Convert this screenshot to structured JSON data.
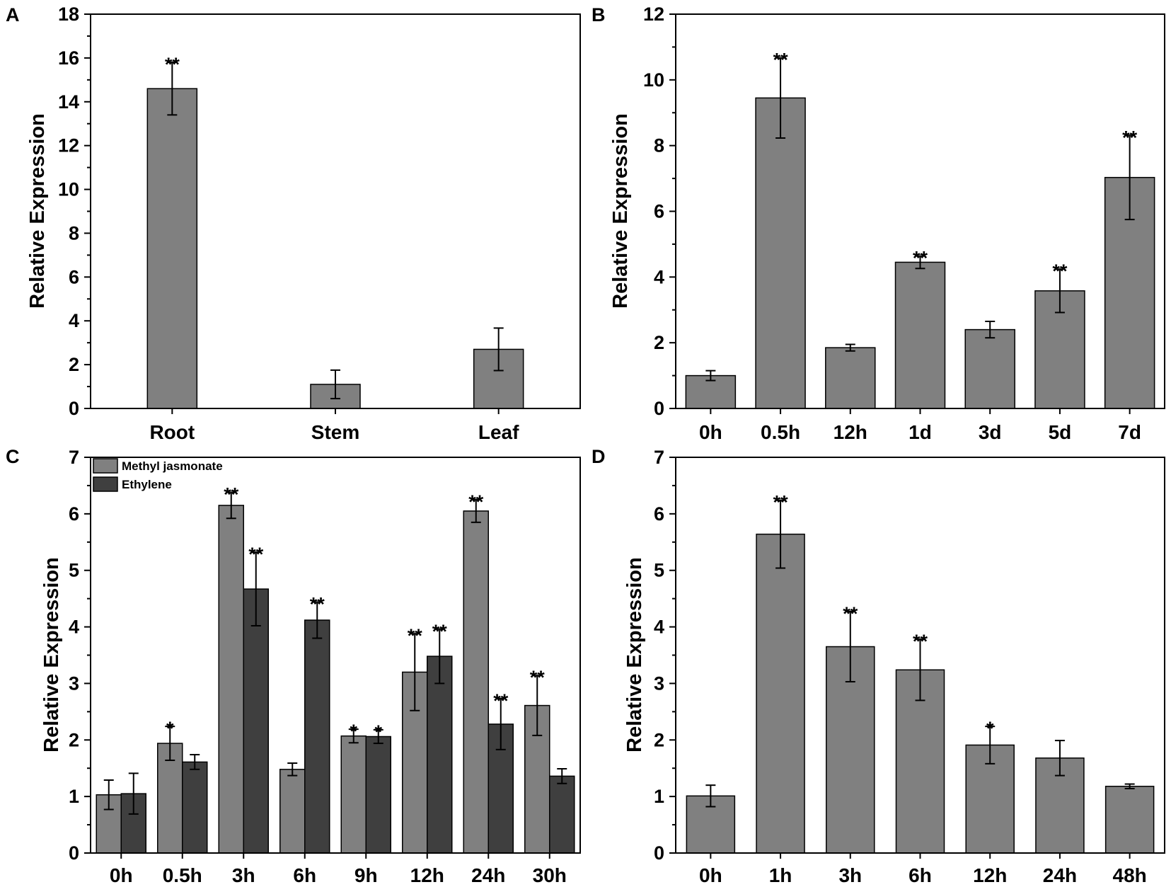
{
  "colors": {
    "bar_primary": "#808080",
    "bar_secondary": "#3f3f3f",
    "stroke": "#000000",
    "background": "#ffffff"
  },
  "chart_data": [
    {
      "panel": "A",
      "type": "bar",
      "title": "",
      "xlabel": "",
      "ylabel": "Relative Expression",
      "ylim": [
        0,
        18
      ],
      "yticks": [
        0,
        2,
        4,
        6,
        8,
        10,
        12,
        14,
        16,
        18
      ],
      "ytick_labels": [
        "0",
        "2",
        "4",
        "6",
        "8",
        "10",
        "12",
        "14",
        "16",
        "18"
      ],
      "minor_ticks": true,
      "categories": [
        "Root",
        "Stem",
        "Leaf"
      ],
      "series": [
        {
          "name": "",
          "color": "#808080",
          "values": [
            14.6,
            1.1,
            2.7
          ],
          "errors": [
            1.2,
            0.65,
            0.97
          ],
          "significance": [
            "**",
            "",
            ""
          ]
        }
      ]
    },
    {
      "panel": "B",
      "type": "bar",
      "title": "",
      "xlabel": "",
      "ylabel": "Relative Expression",
      "ylim": [
        0,
        12
      ],
      "yticks": [
        0,
        2,
        4,
        6,
        8,
        10,
        12
      ],
      "ytick_labels": [
        "0",
        "2",
        "4",
        "6",
        "8",
        "10",
        "12"
      ],
      "minor_ticks": true,
      "categories": [
        "0h",
        "0.5h",
        "12h",
        "1d",
        "3d",
        "5d",
        "7d"
      ],
      "series": [
        {
          "name": "",
          "color": "#808080",
          "values": [
            1.0,
            9.45,
            1.85,
            4.45,
            2.4,
            3.58,
            7.03
          ],
          "errors": [
            0.15,
            1.22,
            0.1,
            0.19,
            0.25,
            0.66,
            1.28
          ],
          "significance": [
            "",
            "**",
            "",
            "**",
            "",
            "**",
            "**"
          ]
        }
      ]
    },
    {
      "panel": "C",
      "type": "bar",
      "title": "",
      "xlabel": "",
      "ylabel": "Relative Expression",
      "ylim": [
        0,
        7
      ],
      "yticks": [
        0,
        1,
        2,
        3,
        4,
        5,
        6,
        7
      ],
      "ytick_labels": [
        "0",
        "1",
        "2",
        "3",
        "4",
        "5",
        "6",
        "7"
      ],
      "minor_ticks": true,
      "legend": "top-left",
      "categories": [
        "0h",
        "0.5h",
        "3h",
        "6h",
        "9h",
        "12h",
        "24h",
        "30h"
      ],
      "series": [
        {
          "name": "Methyl jasmonate",
          "color": "#808080",
          "values": [
            1.03,
            1.94,
            6.15,
            1.48,
            2.07,
            3.2,
            6.05,
            2.61
          ],
          "errors": [
            0.26,
            0.3,
            0.23,
            0.11,
            0.12,
            0.68,
            0.2,
            0.53
          ],
          "significance": [
            "",
            "*",
            "**",
            "",
            "*",
            "**",
            "**",
            "**"
          ]
        },
        {
          "name": "Ethylene",
          "color": "#3f3f3f",
          "values": [
            1.05,
            1.61,
            4.67,
            4.12,
            2.06,
            3.48,
            2.28,
            1.36
          ],
          "errors": [
            0.36,
            0.13,
            0.65,
            0.32,
            0.12,
            0.48,
            0.45,
            0.13
          ],
          "significance": [
            "",
            "",
            "**",
            "**",
            "*",
            "**",
            "**",
            ""
          ]
        }
      ]
    },
    {
      "panel": "D",
      "type": "bar",
      "title": "",
      "xlabel": "",
      "ylabel": "Relative Expression",
      "ylim": [
        0,
        7
      ],
      "yticks": [
        0,
        1,
        2,
        3,
        4,
        5,
        6,
        7
      ],
      "ytick_labels": [
        "0",
        "1",
        "2",
        "3",
        "4",
        "5",
        "6",
        "7"
      ],
      "minor_ticks": true,
      "categories": [
        "0h",
        "1h",
        "3h",
        "6h",
        "12h",
        "24h",
        "48h"
      ],
      "series": [
        {
          "name": "",
          "color": "#808080",
          "values": [
            1.01,
            5.64,
            3.65,
            3.24,
            1.91,
            1.68,
            1.18
          ],
          "errors": [
            0.19,
            0.6,
            0.62,
            0.54,
            0.33,
            0.31,
            0.04
          ],
          "significance": [
            "",
            "**",
            "**",
            "**",
            "*",
            "",
            ""
          ]
        }
      ]
    }
  ]
}
